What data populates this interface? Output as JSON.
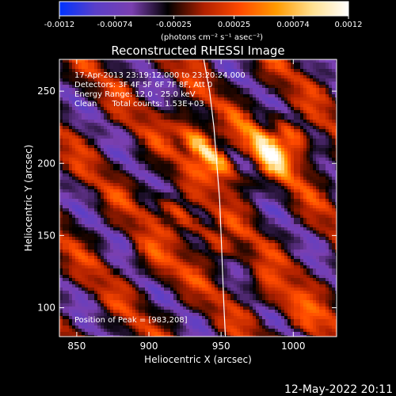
{
  "colorbar": {
    "tick_labels": [
      "-0.0012",
      "-0.00074",
      "-0.00025",
      "0.00025",
      "0.00074",
      "0.0012"
    ],
    "tick_values": [
      -0.0012,
      -0.00074,
      -0.00025,
      0.00025,
      0.00074,
      0.0012
    ],
    "range": [
      -0.0012,
      0.0012
    ],
    "units_label": "(photons cm⁻² s⁻¹ asec⁻²)"
  },
  "annotations": {
    "time_range": "17-Apr-2013 23:19:12.000 to 23:20:24.000",
    "detectors": "Detectors: 3F 4F 5F 6F 7F 8F, Att 0",
    "energy_range": "Energy Range: 12.0 - 25.0 keV",
    "algorithm": "Clean      Total counts: 1.53E+03",
    "peak_position": "Position of Peak = [983,208]",
    "footer_date": "12-May-2022 20:11"
  },
  "chart_data": {
    "type": "heatmap",
    "title": "Reconstructed RHESSI Image",
    "xlabel": "Heliocentric X (arcsec)",
    "ylabel": "Heliocentric Y (arcsec)",
    "xlim": [
      838,
      1030
    ],
    "ylim": [
      80,
      272
    ],
    "x_ticks": [
      850,
      900,
      950,
      1000
    ],
    "x_tick_labels": [
      "850",
      "900",
      "950",
      "1000"
    ],
    "y_ticks": [
      100,
      150,
      200,
      250
    ],
    "y_tick_labels": [
      "100",
      "150",
      "200",
      "250"
    ],
    "colormap": [
      "#0033ff",
      "#5a3fc8",
      "#7a3fb0",
      "#000000",
      "#b02000",
      "#ff4a00",
      "#ff9a00",
      "#ffe090",
      "#ffffff"
    ],
    "peak": {
      "x": 983,
      "y": 208
    },
    "limb_curve": [
      [
        938,
        272
      ],
      [
        942,
        250
      ],
      [
        945,
        225
      ],
      [
        947,
        200
      ],
      [
        949,
        175
      ],
      [
        950,
        150
      ],
      [
        951,
        125
      ],
      [
        952,
        100
      ],
      [
        953,
        80
      ]
    ],
    "bright_sources": [
      {
        "x": 983,
        "y": 208,
        "intensity": 0.0012
      },
      {
        "x": 1000,
        "y": 217,
        "intensity": 0.001
      },
      {
        "x": 933,
        "y": 220,
        "intensity": 0.0009
      },
      {
        "x": 940,
        "y": 205,
        "intensity": 0.0008
      },
      {
        "x": 920,
        "y": 165,
        "intensity": 0.0007
      },
      {
        "x": 945,
        "y": 145,
        "intensity": 0.0006
      },
      {
        "x": 905,
        "y": 130,
        "intensity": 0.0005
      },
      {
        "x": 985,
        "y": 110,
        "intensity": 0.0006
      },
      {
        "x": 1010,
        "y": 90,
        "intensity": 0.0005
      },
      {
        "x": 955,
        "y": 195,
        "intensity": 0.0006
      }
    ]
  }
}
